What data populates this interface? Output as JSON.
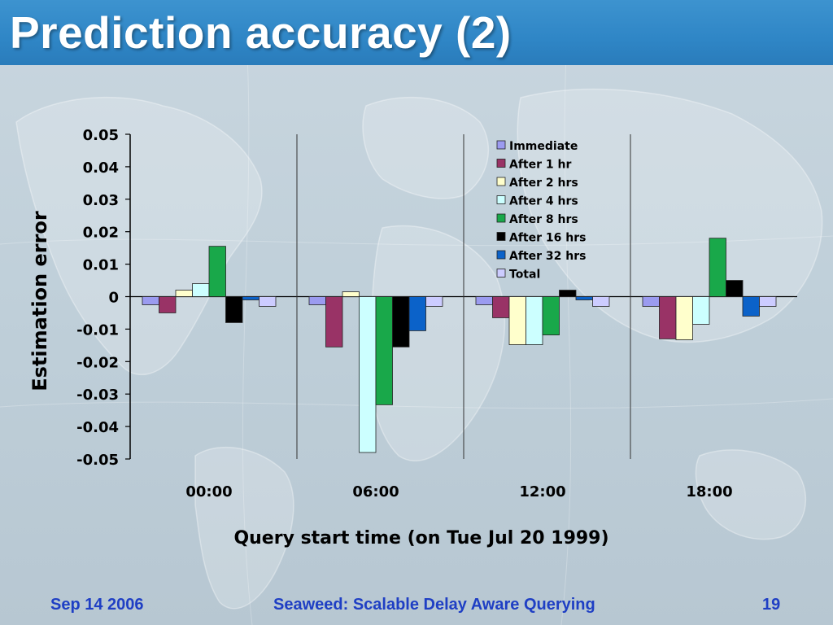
{
  "slide": {
    "title": "Prediction accuracy (2)",
    "footer_date": "Sep 14 2006",
    "footer_title": "Seaweed: Scalable Delay Aware Querying",
    "footer_page": "19"
  },
  "colors": {
    "title_bar": "#2f86c6",
    "footer_text": "#1f3fc4",
    "series": [
      "#9b9bf0",
      "#993366",
      "#ffffcc",
      "#ccffff",
      "#19a84a",
      "#000000",
      "#0b62c9",
      "#ccccff"
    ]
  },
  "chart_data": {
    "type": "bar",
    "title": "",
    "xlabel": "Query start time (on Tue Jul 20 1999)",
    "ylabel": "Estimation error",
    "ylim": [
      -0.05,
      0.05
    ],
    "yticks": [
      "0.05",
      "0.04",
      "0.03",
      "0.02",
      "0.01",
      "0",
      "-0.01",
      "-0.02",
      "-0.03",
      "-0.04",
      "-0.05"
    ],
    "categories": [
      "00:00",
      "06:00",
      "12:00",
      "18:00"
    ],
    "legend_position": "top-right",
    "grid": false,
    "series": [
      {
        "name": "Immediate",
        "values": [
          -0.0025,
          -0.0025,
          -0.0025,
          -0.003
        ]
      },
      {
        "name": "After 1 hr",
        "values": [
          -0.005,
          -0.0155,
          -0.0065,
          -0.013
        ]
      },
      {
        "name": "After 2 hrs",
        "values": [
          0.002,
          0.0015,
          -0.0148,
          -0.0133
        ]
      },
      {
        "name": "After 4 hrs",
        "values": [
          0.004,
          -0.048,
          -0.0148,
          -0.0085
        ]
      },
      {
        "name": "After 8 hrs",
        "values": [
          0.0155,
          -0.0333,
          -0.0118,
          0.018
        ]
      },
      {
        "name": "After 16 hrs",
        "values": [
          -0.008,
          -0.0155,
          0.002,
          0.005
        ]
      },
      {
        "name": "After 32 hrs",
        "values": [
          -0.001,
          -0.0105,
          -0.001,
          -0.006
        ]
      },
      {
        "name": "Total",
        "values": [
          -0.003,
          -0.003,
          -0.003,
          -0.003
        ]
      }
    ]
  }
}
